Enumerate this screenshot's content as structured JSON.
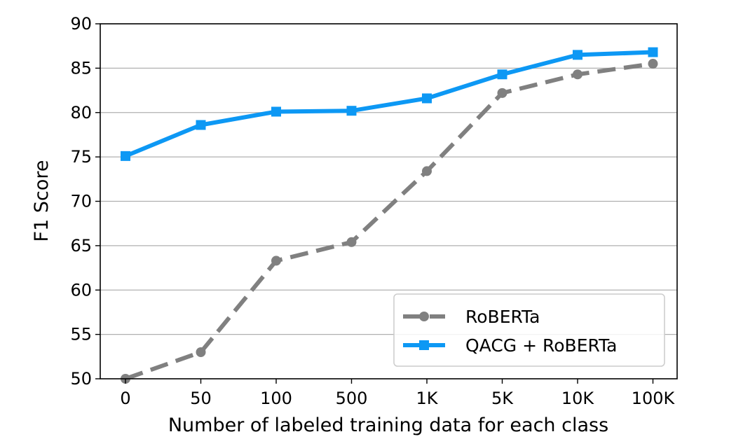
{
  "chart_data": {
    "type": "line",
    "title": "",
    "xlabel": "Number of labeled training data for each class",
    "ylabel": "F1 Score",
    "categories": [
      "0",
      "50",
      "100",
      "500",
      "1K",
      "5K",
      "10K",
      "100K"
    ],
    "ylim": [
      50,
      90
    ],
    "yticks": [
      50,
      55,
      60,
      65,
      70,
      75,
      80,
      85,
      90
    ],
    "grid": "horizontal",
    "legend_position": "lower-right",
    "series": [
      {
        "name": "RoBERTa",
        "values": [
          50.0,
          53.0,
          63.3,
          65.4,
          73.4,
          82.2,
          84.3,
          85.5
        ],
        "color": "#808080",
        "line_style": "dashed",
        "marker": "circle"
      },
      {
        "name": "QACG + RoBERTa",
        "values": [
          75.1,
          78.6,
          80.1,
          80.2,
          81.6,
          84.3,
          86.5,
          86.8
        ],
        "color": "#0d98f4",
        "line_style": "solid",
        "marker": "square"
      }
    ]
  }
}
